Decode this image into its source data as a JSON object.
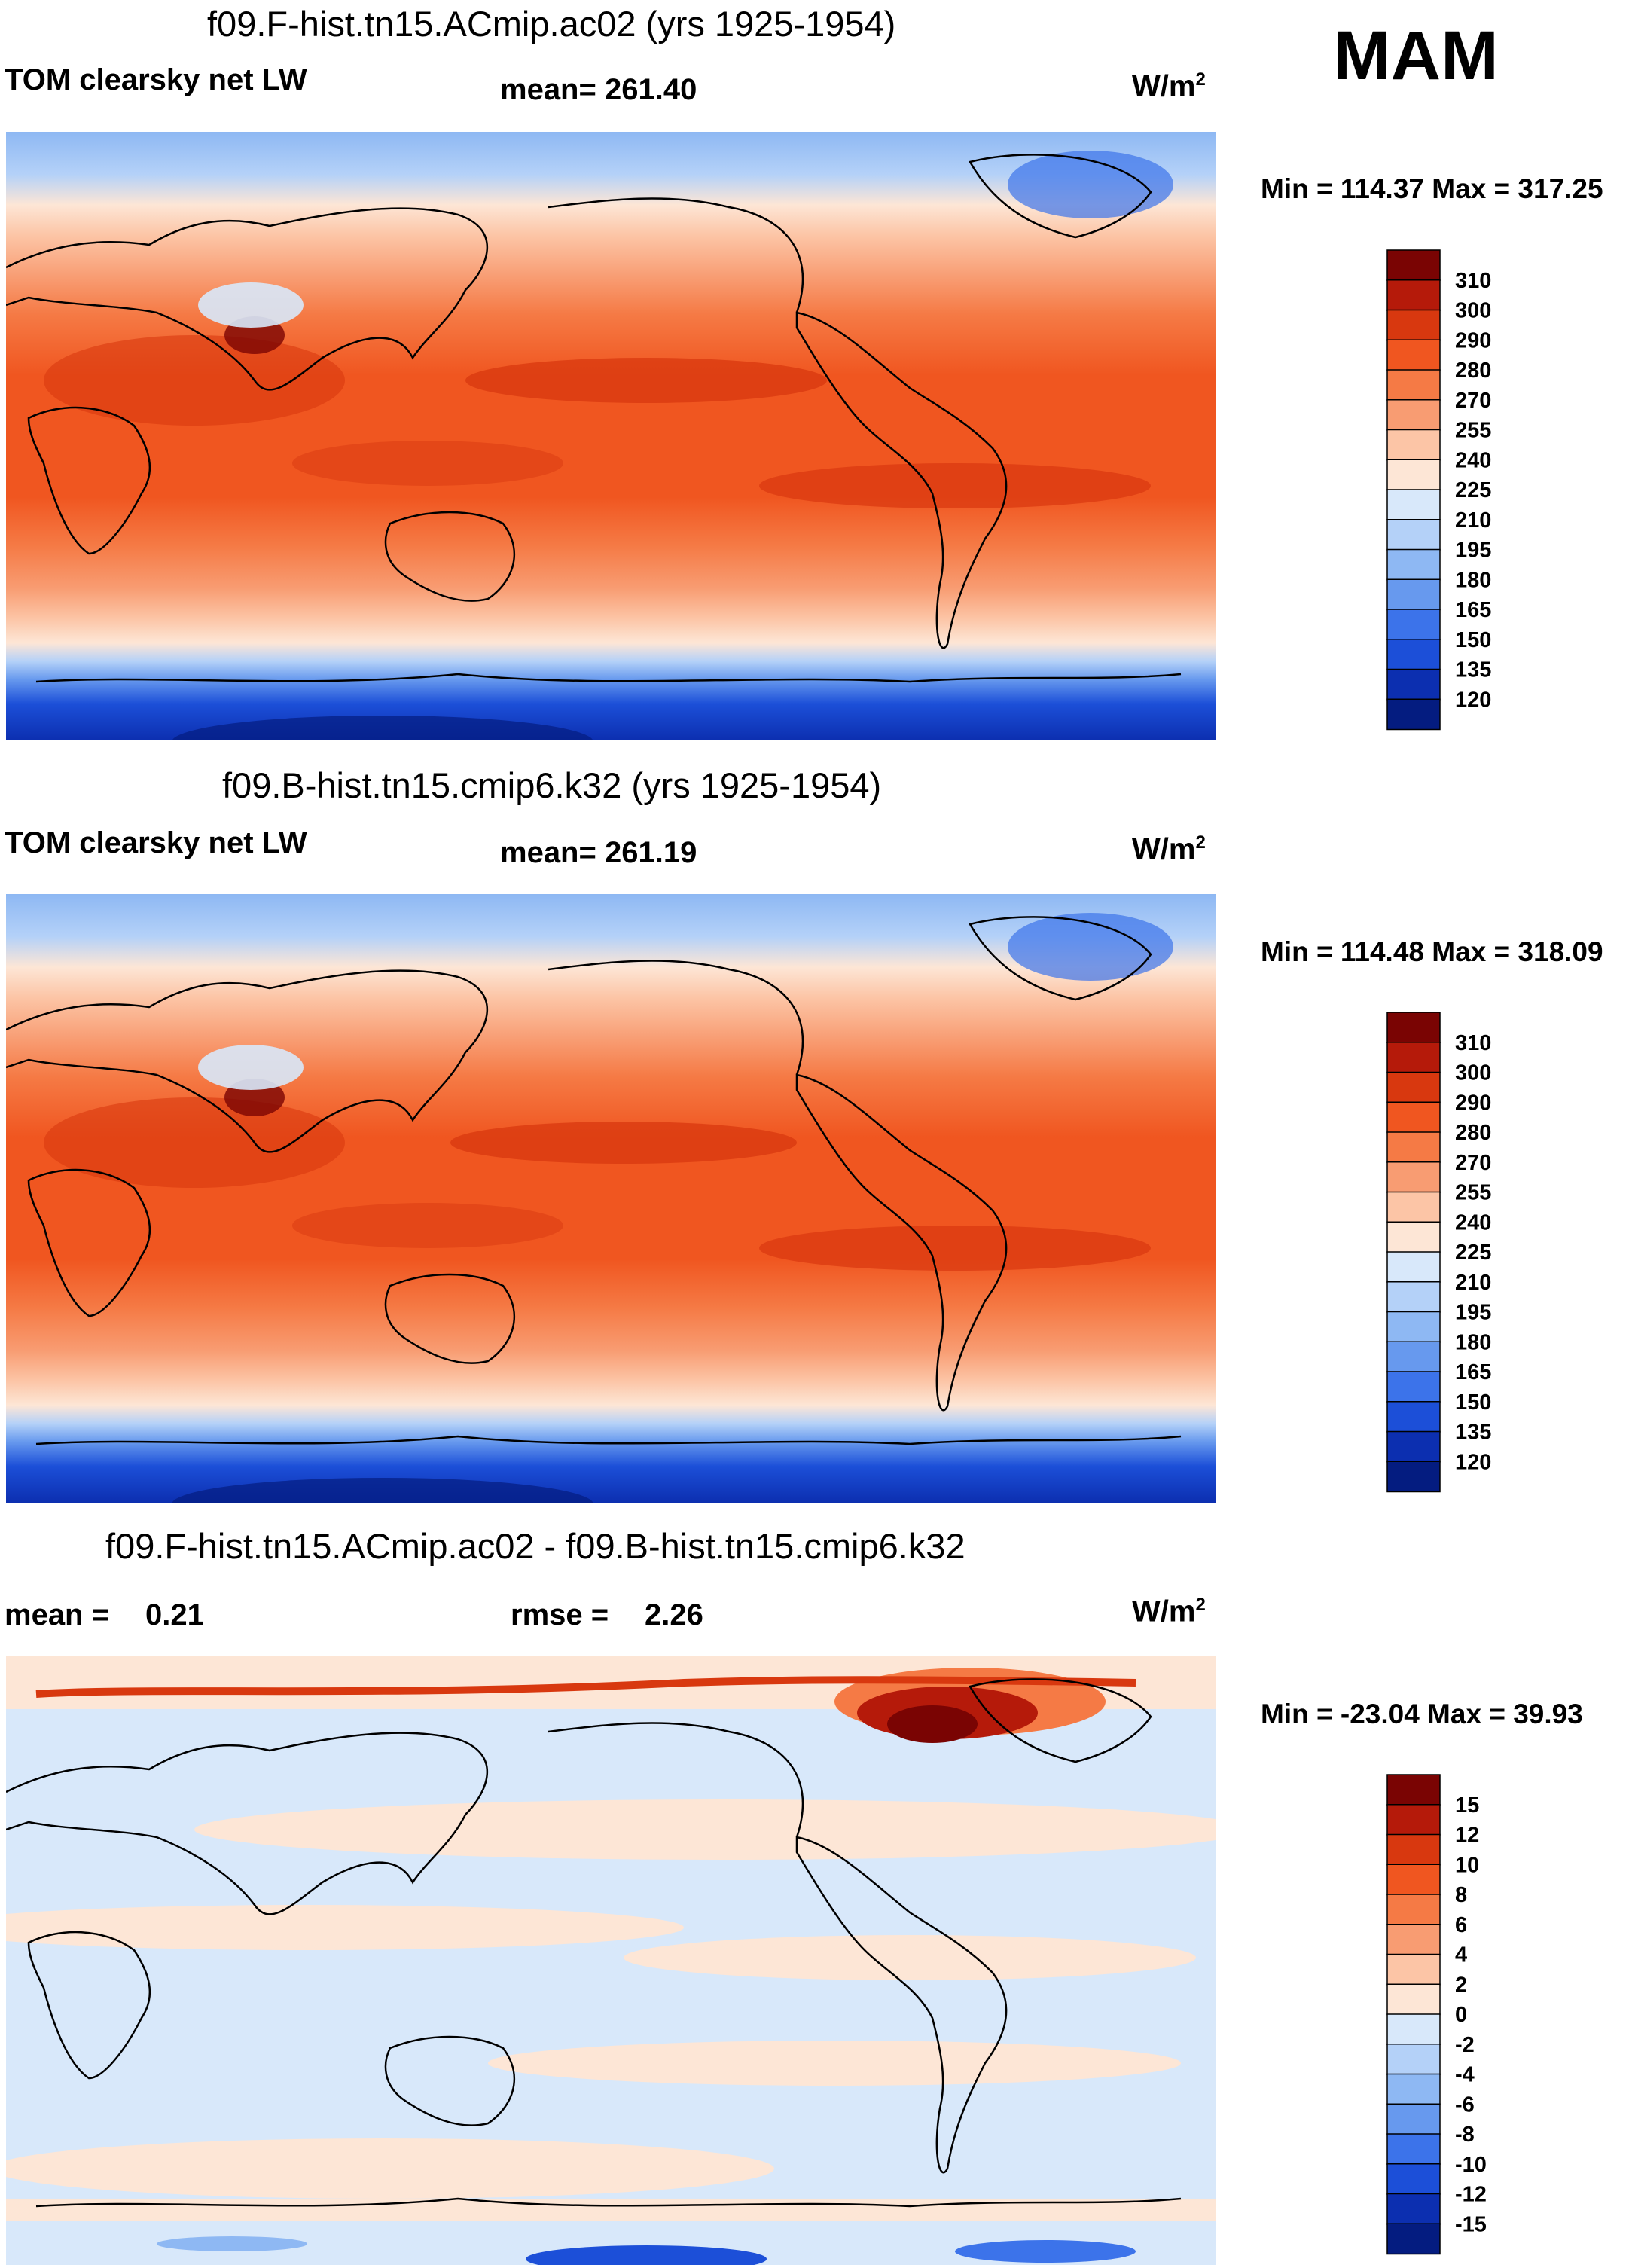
{
  "season": "MAM",
  "units_label": "W/m",
  "units_exp": "2",
  "panels": [
    {
      "title": "f09.F-hist.tn15.ACmip.ac02 (yrs 1925-1954)",
      "variable": "TOM clearsky net LW",
      "stat": "mean= 261.40",
      "minmax": "Min = 114.37 Max = 317.25"
    },
    {
      "title": "f09.B-hist.tn15.cmip6.k32 (yrs 1925-1954)",
      "variable": "TOM clearsky net LW",
      "stat": "mean= 261.19",
      "minmax": "Min = 114.48 Max = 318.09"
    },
    {
      "title": "f09.F-hist.tn15.ACmip.ac02 - f09.B-hist.tn15.cmip6.k32",
      "mean_label": "mean =",
      "mean_value": "0.21",
      "rmse_label": "rmse =",
      "rmse_value": "2.26",
      "minmax": "Min = -23.04 Max =  39.93"
    }
  ],
  "chart_data": [
    {
      "type": "heatmap",
      "title": "f09.F-hist.tn15.ACmip.ac02 (yrs 1925-1954)",
      "variable": "TOM clearsky net LW",
      "units": "W/m2",
      "mean": 261.4,
      "min": 114.37,
      "max": 317.25,
      "levels": [
        120,
        135,
        150,
        165,
        180,
        195,
        210,
        225,
        240,
        255,
        270,
        280,
        290,
        300,
        310
      ]
    },
    {
      "type": "heatmap",
      "title": "f09.B-hist.tn15.cmip6.k32 (yrs 1925-1954)",
      "variable": "TOM clearsky net LW",
      "units": "W/m2",
      "mean": 261.19,
      "min": 114.48,
      "max": 318.09,
      "levels": [
        120,
        135,
        150,
        165,
        180,
        195,
        210,
        225,
        240,
        255,
        270,
        280,
        290,
        300,
        310
      ]
    },
    {
      "type": "heatmap",
      "title": "f09.F-hist.tn15.ACmip.ac02 - f09.B-hist.tn15.cmip6.k32",
      "units": "W/m2",
      "mean": 0.21,
      "rmse": 2.26,
      "min": -23.04,
      "max": 39.93,
      "levels": [
        -15,
        -12,
        -10,
        -8,
        -6,
        -4,
        -2,
        0,
        2,
        4,
        6,
        8,
        10,
        12,
        15
      ]
    }
  ],
  "colorbars": [
    {
      "labels": [
        "310",
        "300",
        "290",
        "280",
        "270",
        "255",
        "240",
        "225",
        "210",
        "195",
        "180",
        "165",
        "150",
        "135",
        "120"
      ],
      "colors": [
        "#7a0403",
        "#b51a0a",
        "#d8380f",
        "#f05620",
        "#f57a45",
        "#f89c72",
        "#fcc5a6",
        "#fde6d6",
        "#d8e8fa",
        "#b4d1f8",
        "#8eb8f3",
        "#6799ee",
        "#3c73ea",
        "#1c4fd8",
        "#0c2fb0",
        "#041c80"
      ]
    },
    {
      "labels": [
        "310",
        "300",
        "290",
        "280",
        "270",
        "255",
        "240",
        "225",
        "210",
        "195",
        "180",
        "165",
        "150",
        "135",
        "120"
      ],
      "colors": [
        "#7a0403",
        "#b51a0a",
        "#d8380f",
        "#f05620",
        "#f57a45",
        "#f89c72",
        "#fcc5a6",
        "#fde6d6",
        "#d8e8fa",
        "#b4d1f8",
        "#8eb8f3",
        "#6799ee",
        "#3c73ea",
        "#1c4fd8",
        "#0c2fb0",
        "#041c80"
      ]
    },
    {
      "labels": [
        "15",
        "12",
        "10",
        "8",
        "6",
        "4",
        "2",
        "0",
        "-2",
        "-4",
        "-6",
        "-8",
        "-10",
        "-12",
        "-15"
      ],
      "colors": [
        "#7a0403",
        "#b51a0a",
        "#d8380f",
        "#f05620",
        "#f57a45",
        "#f89c72",
        "#fcc5a6",
        "#fde6d6",
        "#d8e8fa",
        "#b4d1f8",
        "#8eb8f3",
        "#6799ee",
        "#3c73ea",
        "#1c4fd8",
        "#0c2fb0",
        "#041c80"
      ]
    }
  ]
}
